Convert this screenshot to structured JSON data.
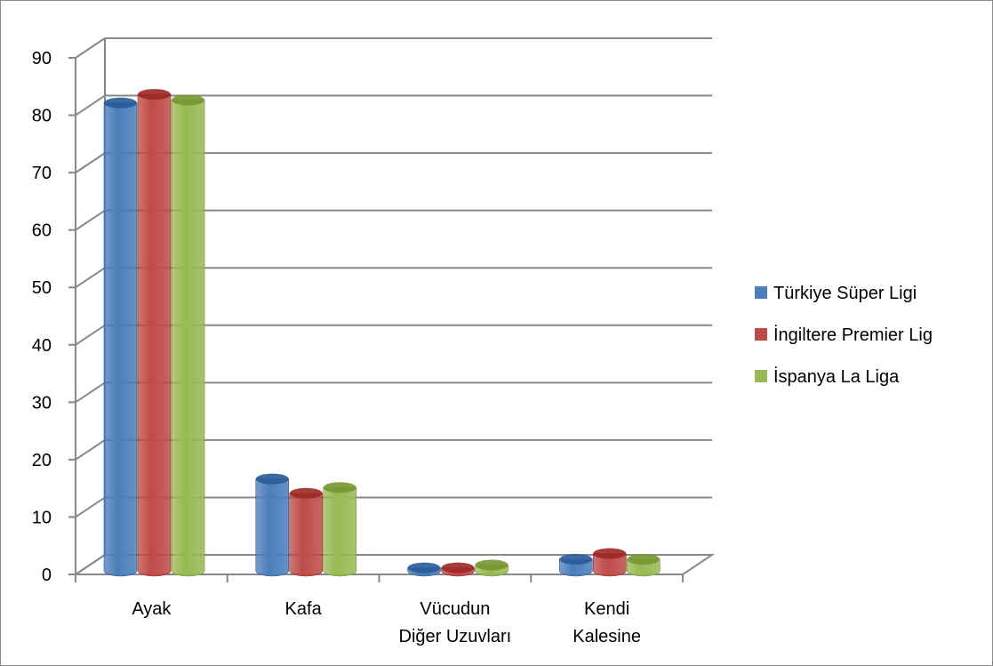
{
  "chart_data": {
    "type": "bar",
    "categories": [
      "Ayak",
      "Kafa",
      "Vücudun Diğer Uzuvları",
      "Kendi Kalesine"
    ],
    "category_lines": [
      [
        "Ayak"
      ],
      [
        "Kafa"
      ],
      [
        "Vücudun",
        "Diğer Uzuvları"
      ],
      [
        "Kendi",
        "Kalesine"
      ]
    ],
    "series": [
      {
        "name": "Türkiye Süper Ligi",
        "values": [
          81.5,
          16,
          0.5,
          2
        ],
        "color": "#4a7ebb"
      },
      {
        "name": "İngiltere Premier Lig",
        "values": [
          83,
          13.5,
          0.5,
          3
        ],
        "color": "#be4b48"
      },
      {
        "name": "İspanya La Liga",
        "values": [
          82,
          14.5,
          1,
          2
        ],
        "color": "#98b954"
      }
    ],
    "ylim": [
      0,
      90
    ],
    "yticks": [
      0,
      10,
      20,
      30,
      40,
      50,
      60,
      70,
      80,
      90
    ],
    "grid": true,
    "legend_position": "right",
    "style": "3d-cylinder"
  }
}
